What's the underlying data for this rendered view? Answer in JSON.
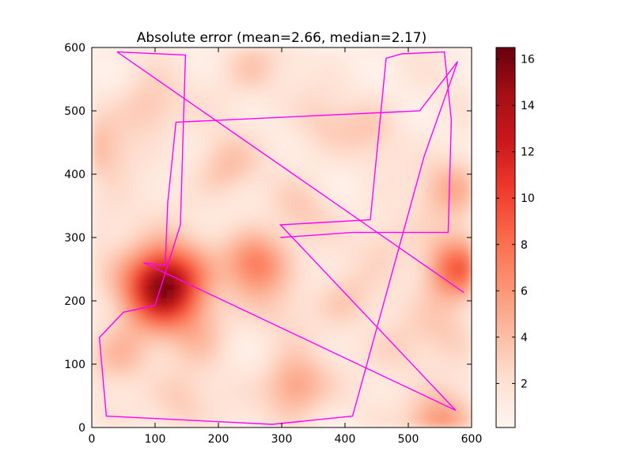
{
  "chart_data": {
    "type": "heatmap",
    "title": "Absolute error (mean=2.66, median=2.17)",
    "xlabel": "",
    "ylabel": "",
    "xlim": [
      0,
      600
    ],
    "ylim": [
      0,
      600
    ],
    "x_ticks": [
      0,
      100,
      200,
      300,
      400,
      500,
      600
    ],
    "y_ticks": [
      0,
      100,
      200,
      300,
      400,
      500,
      600
    ],
    "colormap": "Reds",
    "colorbar": {
      "min": 0.1,
      "max": 16.5,
      "ticks": [
        2,
        4,
        6,
        8,
        10,
        12,
        14,
        16
      ]
    },
    "grid": false,
    "error_hotspots": [
      {
        "x": 115,
        "y": 225,
        "value": 16.5
      },
      {
        "x": 260,
        "y": 260,
        "value": 7.5
      },
      {
        "x": 575,
        "y": 250,
        "value": 9.0
      },
      {
        "x": 570,
        "y": 380,
        "value": 5.0
      },
      {
        "x": 320,
        "y": 65,
        "value": 6.0
      },
      {
        "x": 550,
        "y": 10,
        "value": 6.5
      },
      {
        "x": 45,
        "y": 115,
        "value": 4.5
      },
      {
        "x": 210,
        "y": 410,
        "value": 4.0
      },
      {
        "x": 90,
        "y": 505,
        "value": 4.0
      },
      {
        "x": 400,
        "y": 200,
        "value": 3.5
      },
      {
        "x": 330,
        "y": 340,
        "value": 3.0
      },
      {
        "x": 175,
        "y": 150,
        "value": 3.5
      },
      {
        "x": 440,
        "y": 470,
        "value": 3.0
      },
      {
        "x": 10,
        "y": 440,
        "value": 4.0
      },
      {
        "x": 250,
        "y": 565,
        "value": 3.5
      },
      {
        "x": 480,
        "y": 120,
        "value": 3.0
      },
      {
        "x": 360,
        "y": 480,
        "value": 3.0
      },
      {
        "x": 140,
        "y": 40,
        "value": 3.5
      },
      {
        "x": 470,
        "y": 300,
        "value": 3.0
      },
      {
        "x": 300,
        "y": 190,
        "value": 2.5
      },
      {
        "x": 560,
        "y": 160,
        "value": 3.0
      },
      {
        "x": 30,
        "y": 330,
        "value": 2.5
      }
    ],
    "path_color": "#ff00ff",
    "path": [
      [
        40,
        593
      ],
      [
        148,
        588
      ],
      [
        140,
        320
      ],
      [
        100,
        193
      ],
      [
        50,
        182
      ],
      [
        12,
        142
      ],
      [
        23,
        18
      ],
      [
        285,
        5
      ],
      [
        412,
        18
      ],
      [
        525,
        428
      ],
      [
        578,
        578
      ],
      [
        518,
        500
      ],
      [
        133,
        482
      ],
      [
        120,
        355
      ],
      [
        116,
        256
      ],
      [
        82,
        260
      ],
      [
        575,
        27
      ],
      [
        298,
        320
      ],
      [
        440,
        328
      ],
      [
        465,
        583
      ],
      [
        490,
        590
      ],
      [
        557,
        593
      ],
      [
        568,
        485
      ],
      [
        563,
        308
      ],
      [
        413,
        308
      ],
      [
        298,
        300
      ]
    ],
    "path2": [
      [
        40,
        593
      ],
      [
        588,
        213
      ]
    ]
  }
}
